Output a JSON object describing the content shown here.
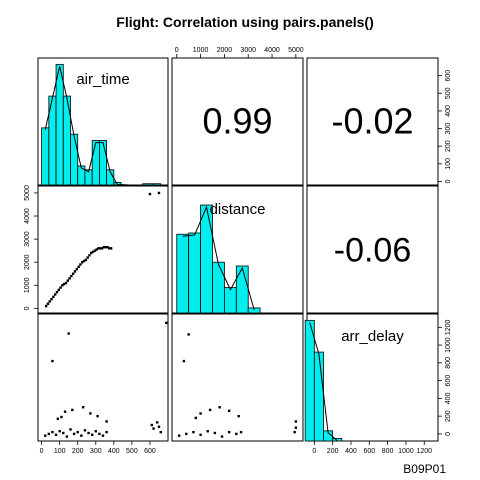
{
  "chart_data": {
    "type": "scatter-matrix",
    "title": "Flight: Correlation using pairs.panels()",
    "footer": "B09P01",
    "variables": [
      "air_time",
      "distance",
      "arr_delay"
    ],
    "correlations": [
      {
        "pair": [
          "air_time",
          "distance"
        ],
        "value": "0.99"
      },
      {
        "pair": [
          "air_time",
          "arr_delay"
        ],
        "value": "-0.02"
      },
      {
        "pair": [
          "distance",
          "arr_delay"
        ],
        "value": "-0.06"
      }
    ],
    "axes": {
      "air_time": {
        "range": [
          -20,
          700
        ],
        "ticks": [
          "0",
          "100",
          "200",
          "300",
          "400",
          "500",
          "600"
        ]
      },
      "distance": {
        "range": [
          -200,
          5300
        ],
        "ticks": [
          "0",
          "1000",
          "2000",
          "3000",
          "4000",
          "5000"
        ]
      },
      "arr_delay": {
        "range": [
          -80,
          1350
        ],
        "ticks": [
          "0",
          "200",
          "400",
          "600",
          "800",
          "1000",
          "1200"
        ]
      }
    },
    "histograms": {
      "air_time": {
        "bins": [
          [
            0,
            40,
            0.45
          ],
          [
            40,
            80,
            0.7
          ],
          [
            80,
            120,
            0.95
          ],
          [
            120,
            160,
            0.7
          ],
          [
            160,
            200,
            0.4
          ],
          [
            200,
            240,
            0.15
          ],
          [
            240,
            280,
            0.12
          ],
          [
            280,
            320,
            0.35
          ],
          [
            320,
            360,
            0.35
          ],
          [
            360,
            400,
            0.12
          ],
          [
            400,
            440,
            0.02
          ],
          [
            560,
            620,
            0.01
          ],
          [
            620,
            660,
            0.01
          ]
        ]
      },
      "distance": {
        "bins": [
          [
            0,
            500,
            0.62
          ],
          [
            500,
            1000,
            0.63
          ],
          [
            1000,
            1500,
            0.85
          ],
          [
            1500,
            2000,
            0.4
          ],
          [
            2000,
            2500,
            0.2
          ],
          [
            2500,
            3000,
            0.37
          ],
          [
            3000,
            3500,
            0.04
          ]
        ]
      },
      "arr_delay": {
        "bins": [
          [
            -100,
            0,
            0.95
          ],
          [
            0,
            100,
            0.7
          ],
          [
            100,
            200,
            0.08
          ],
          [
            200,
            300,
            0.02
          ]
        ]
      }
    },
    "scatter_air_time_distance": [
      [
        25,
        100
      ],
      [
        35,
        200
      ],
      [
        45,
        300
      ],
      [
        55,
        400
      ],
      [
        65,
        500
      ],
      [
        75,
        600
      ],
      [
        85,
        700
      ],
      [
        95,
        800
      ],
      [
        105,
        900
      ],
      [
        115,
        1000
      ],
      [
        125,
        1050
      ],
      [
        135,
        1100
      ],
      [
        145,
        1200
      ],
      [
        155,
        1300
      ],
      [
        165,
        1400
      ],
      [
        175,
        1500
      ],
      [
        185,
        1600
      ],
      [
        195,
        1700
      ],
      [
        205,
        1800
      ],
      [
        215,
        1900
      ],
      [
        225,
        2000
      ],
      [
        235,
        2050
      ],
      [
        245,
        2100
      ],
      [
        255,
        2200
      ],
      [
        265,
        2300
      ],
      [
        275,
        2400
      ],
      [
        285,
        2450
      ],
      [
        295,
        2500
      ],
      [
        305,
        2550
      ],
      [
        315,
        2600
      ],
      [
        325,
        2600
      ],
      [
        335,
        2600
      ],
      [
        345,
        2650
      ],
      [
        355,
        2650
      ],
      [
        365,
        2650
      ],
      [
        375,
        2600
      ],
      [
        385,
        2600
      ],
      [
        600,
        4950
      ],
      [
        650,
        5000
      ]
    ],
    "scatter_air_time_arr_delay": [
      [
        20,
        -20
      ],
      [
        40,
        0
      ],
      [
        60,
        20
      ],
      [
        80,
        -10
      ],
      [
        100,
        30
      ],
      [
        120,
        10
      ],
      [
        140,
        -30
      ],
      [
        160,
        50
      ],
      [
        180,
        0
      ],
      [
        200,
        20
      ],
      [
        220,
        -20
      ],
      [
        240,
        40
      ],
      [
        260,
        10
      ],
      [
        280,
        -10
      ],
      [
        300,
        30
      ],
      [
        320,
        0
      ],
      [
        340,
        -20
      ],
      [
        360,
        20
      ],
      [
        110,
        190
      ],
      [
        130,
        250
      ],
      [
        170,
        270
      ],
      [
        230,
        300
      ],
      [
        270,
        230
      ],
      [
        310,
        200
      ],
      [
        90,
        170
      ],
      [
        360,
        140
      ],
      [
        60,
        820
      ],
      [
        150,
        1130
      ],
      [
        610,
        100
      ],
      [
        620,
        60
      ],
      [
        640,
        130
      ],
      [
        650,
        80
      ],
      [
        660,
        20
      ],
      [
        690,
        1250
      ]
    ],
    "scatter_distance_arr_delay": [
      [
        100,
        -20
      ],
      [
        400,
        0
      ],
      [
        700,
        20
      ],
      [
        1000,
        -10
      ],
      [
        1300,
        30
      ],
      [
        1600,
        10
      ],
      [
        1900,
        -30
      ],
      [
        2200,
        20
      ],
      [
        2500,
        0
      ],
      [
        2700,
        20
      ],
      [
        1000,
        230
      ],
      [
        1400,
        270
      ],
      [
        1800,
        300
      ],
      [
        2200,
        260
      ],
      [
        800,
        180
      ],
      [
        2600,
        200
      ],
      [
        300,
        820
      ],
      [
        500,
        1120
      ],
      [
        4950,
        20
      ],
      [
        5000,
        70
      ],
      [
        5000,
        140
      ]
    ]
  }
}
